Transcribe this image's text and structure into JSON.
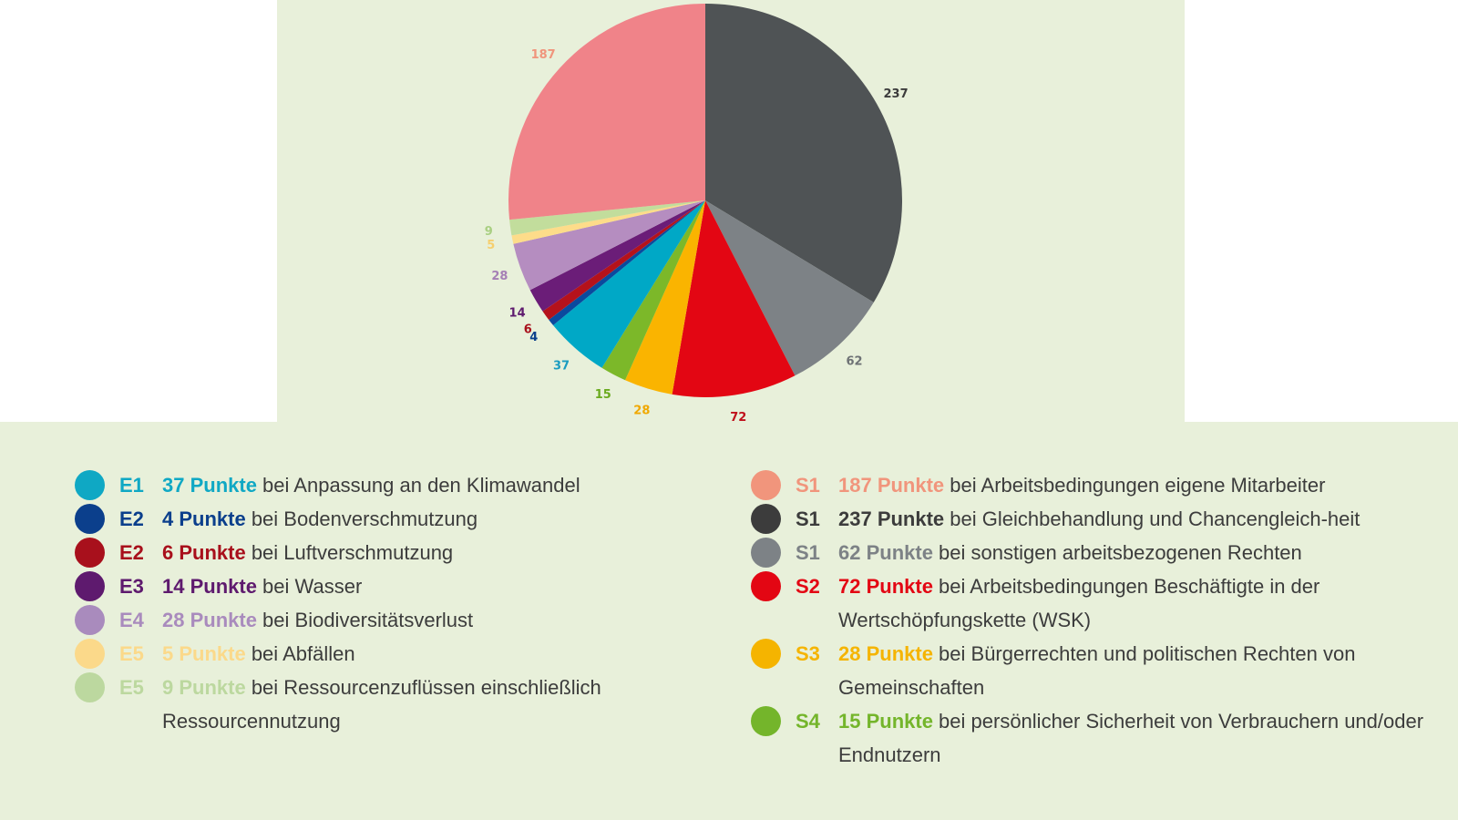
{
  "chart_data": {
    "type": "pie",
    "title": "",
    "start": "12 o'clock, clockwise",
    "slices": [
      {
        "code": "S1",
        "value": 237,
        "label": "237",
        "color": "#4f5355",
        "label_color": "#3c3c3c"
      },
      {
        "code": "S1",
        "value": 62,
        "label": "62",
        "color": "#7d8286",
        "label_color": "#6e7275"
      },
      {
        "code": "S2",
        "value": 72,
        "label": "72",
        "color": "#e30613",
        "label_color": "#c0101b"
      },
      {
        "code": "S3",
        "value": 28,
        "label": "28",
        "color": "#fab400",
        "label_color": "#f0a800"
      },
      {
        "code": "S4",
        "value": 15,
        "label": "15",
        "color": "#7cb829",
        "label_color": "#6aaa1e"
      },
      {
        "code": "E1",
        "value": 37,
        "label": "37",
        "color": "#00a8c6",
        "label_color": "#1a9cc0"
      },
      {
        "code": "E2",
        "value": 4,
        "label": "4",
        "color": "#0b4a9e",
        "label_color": "#0b3f8c"
      },
      {
        "code": "E2",
        "value": 6,
        "label": "6",
        "color": "#b5121b",
        "label_color": "#a8101c"
      },
      {
        "code": "E3",
        "value": 14,
        "label": "14",
        "color": "#6b1d78",
        "label_color": "#5e1a6e"
      },
      {
        "code": "E4",
        "value": 28,
        "label": "28",
        "color": "#b58dc0",
        "label_color": "#a57fb5"
      },
      {
        "code": "E5",
        "value": 5,
        "label": "5",
        "color": "#fddc8a",
        "label_color": "#f6cf6e"
      },
      {
        "code": "E5",
        "value": 9,
        "label": "9",
        "color": "#c2dd9c",
        "label_color": "#a9cf82"
      },
      {
        "code": "S1",
        "value": 187,
        "label": "187",
        "color": "#f08389",
        "label_color": "#f0957c"
      }
    ]
  },
  "legend": {
    "left": [
      {
        "code": "E1",
        "points": "37 Punkte",
        "text": " bei Anpassung an den Klimawandel",
        "color": "#0fa8c4"
      },
      {
        "code": "E2",
        "points": "4 Punkte",
        "text": " bei Bodenverschmutzung",
        "color": "#0b3f8c"
      },
      {
        "code": "E2",
        "points": "6 Punkte",
        "text": " bei Luftverschmutzung",
        "color": "#a8101c"
      },
      {
        "code": "E3",
        "points": "14 Punkte",
        "text": " bei Wasser",
        "color": "#5e1a6e"
      },
      {
        "code": "E4",
        "points": "28 Punkte",
        "text": " bei Biodiversitätsverlust",
        "color": "#a98bbd"
      },
      {
        "code": "E5",
        "points": "5 Punkte",
        "text": " bei Abfällen",
        "color": "#fbd98a"
      },
      {
        "code": "E5",
        "points": "9 Punkte",
        "text": " bei Ressourcenzuflüssen einschließlich Ressourcennutzung",
        "color": "#bcd89f"
      }
    ],
    "right": [
      {
        "code": "S1",
        "points": "187 Punkte",
        "text": " bei Arbeitsbedingungen eigene Mitarbeiter",
        "color": "#f1957c"
      },
      {
        "code": "S1",
        "points": "237 Punkte",
        "text": " bei Gleichbehandlung und Chancengleich-heit",
        "color": "#3c3c3c"
      },
      {
        "code": "S1",
        "points": "62 Punkte",
        "text": " bei sonstigen arbeitsbezogenen Rechten",
        "color": "#7d8286"
      },
      {
        "code": "S2",
        "points": "72 Punkte",
        "text": " bei Arbeitsbedingungen Beschäftigte in der Wertschöpfungskette (WSK)",
        "color": "#e30613"
      },
      {
        "code": "S3",
        "points": "28 Punkte",
        "text": " bei Bürgerrechten und politischen Rechten von Gemeinschaften",
        "color": "#f5b400"
      },
      {
        "code": "S4",
        "points": "15 Punkte",
        "text": " bei persönlicher Sicherheit von Verbrauchern und/oder Endnutzern",
        "color": "#74b52b"
      }
    ]
  }
}
